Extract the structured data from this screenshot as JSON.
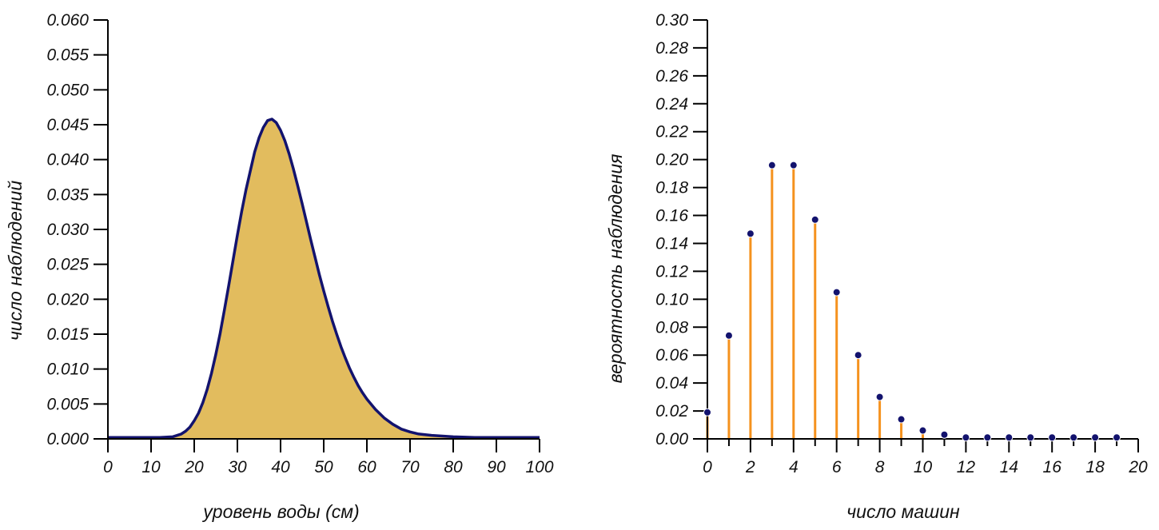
{
  "chart_data": [
    {
      "type": "area",
      "title": "",
      "xlabel": "уровень воды (см)",
      "ylabel": "число наблюдений",
      "xlim": [
        0,
        100
      ],
      "ylim": [
        0,
        0.06
      ],
      "x_ticks": [
        "0",
        "10",
        "20",
        "30",
        "40",
        "50",
        "60",
        "70",
        "80",
        "90",
        "100"
      ],
      "y_ticks": [
        "0.000",
        "0.005",
        "0.010",
        "0.015",
        "0.020",
        "0.025",
        "0.030",
        "0.035",
        "0.040",
        "0.045",
        "0.050",
        "0.055",
        "0.060"
      ],
      "x": [
        0,
        5,
        10,
        12,
        15,
        17,
        18,
        19,
        20,
        21,
        22,
        23,
        24,
        25,
        26,
        27,
        28,
        29,
        30,
        31,
        32,
        33,
        34,
        35,
        36,
        37,
        38,
        39,
        40,
        41,
        42,
        43,
        44,
        45,
        46,
        47,
        48,
        49,
        50,
        51,
        52,
        53,
        54,
        55,
        56,
        57,
        58,
        59,
        60,
        62,
        64,
        66,
        68,
        70,
        72,
        75,
        80,
        85,
        90,
        95,
        100
      ],
      "y": [
        0.0002,
        0.0002,
        0.0002,
        0.0002,
        0.0003,
        0.0007,
        0.0011,
        0.0017,
        0.0026,
        0.0037,
        0.0052,
        0.0071,
        0.0094,
        0.0121,
        0.0151,
        0.0185,
        0.022,
        0.0256,
        0.0292,
        0.0326,
        0.0357,
        0.0384,
        0.0411,
        0.0431,
        0.0446,
        0.0456,
        0.0458,
        0.0453,
        0.0442,
        0.0427,
        0.0408,
        0.0386,
        0.0362,
        0.0337,
        0.0311,
        0.0285,
        0.026,
        0.0235,
        0.0212,
        0.019,
        0.0169,
        0.015,
        0.0132,
        0.0116,
        0.0101,
        0.0088,
        0.0076,
        0.0066,
        0.0057,
        0.0042,
        0.003,
        0.0021,
        0.0014,
        0.001,
        0.0007,
        0.0005,
        0.0003,
        0.0002,
        0.0002,
        0.0002,
        0.0002
      ],
      "grid": false,
      "colors": {
        "fill": "#e2bc5e",
        "line": "#13136e"
      }
    },
    {
      "type": "scatter",
      "title": "",
      "xlabel": "число машин",
      "ylabel": "вероятность наблюдения",
      "xlim": [
        0,
        20
      ],
      "ylim": [
        0,
        0.3
      ],
      "x_ticks": [
        "0",
        "2",
        "4",
        "6",
        "8",
        "10",
        "12",
        "14",
        "16",
        "18",
        "20"
      ],
      "y_ticks": [
        "0.00",
        "0.02",
        "0.04",
        "0.06",
        "0.08",
        "0.10",
        "0.12",
        "0.14",
        "0.16",
        "0.18",
        "0.20",
        "0.22",
        "0.24",
        "0.26",
        "0.28",
        "0.30"
      ],
      "x": [
        0,
        1,
        2,
        3,
        4,
        5,
        6,
        7,
        8,
        9,
        10,
        11,
        12,
        13,
        14,
        15,
        16,
        17,
        18,
        19
      ],
      "y": [
        0.019,
        0.074,
        0.147,
        0.196,
        0.196,
        0.157,
        0.105,
        0.06,
        0.03,
        0.014,
        0.006,
        0.003,
        0.001,
        0.001,
        0.001,
        0.001,
        0.001,
        0.001,
        0.001,
        0.001
      ],
      "grid": false,
      "colors": {
        "stem": "#f5921e",
        "point": "#13136e"
      }
    }
  ]
}
